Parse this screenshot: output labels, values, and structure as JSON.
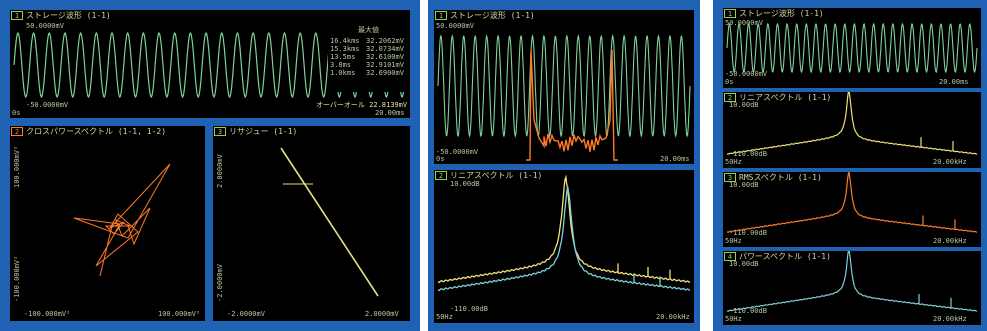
{
  "colors": {
    "bezel": "#1f62b3",
    "wave": "#7ed29a",
    "orange": "#ff7a2a",
    "yellow": "#f0e27a",
    "cyan": "#7fd0d8",
    "text": "#cfd8a0"
  },
  "left": {
    "top": {
      "tag": "1",
      "title": "ストレージ波形 (1-1)",
      "y_top": "50.0000mV",
      "y_bottom": "-50.0000mV",
      "x_left": "0s",
      "x_right": "20.00ms",
      "peak_title": "最大値",
      "peak_col1": [
        "16.4kms",
        "15.3kms",
        "13.5ms",
        "3.8ms",
        "1.0kms"
      ],
      "peak_col2": [
        "32.2062mV",
        "32.0734mV",
        "32.6100mV",
        "32.9101mV",
        "32.6900mV"
      ],
      "overall": "オーバーオール 22.8139mV"
    },
    "bottom_left": {
      "tag": "2",
      "title": "クロスパワースペクトル (1-1, 1-2)",
      "y_top": "100.000mV²",
      "y_bottom": "-100.000mV²",
      "x_left": "-100.000mV²",
      "x_right": "100.000mV²"
    },
    "bottom_right": {
      "tag": "3",
      "title": "リサジュー (1-1)",
      "y_top": "2.0000mV",
      "y_bottom": "-2.0000mV",
      "x_left": "-2.0000mV",
      "x_right": "2.0000mV"
    }
  },
  "middle": {
    "top": {
      "tag": "1",
      "title": "ストレージ波形 (1-1)",
      "y_top": "50.0000mV",
      "y_bottom": "-50.0000mV",
      "x_left": "0s",
      "x_right": "20.00ms"
    },
    "bottom": {
      "tag": "2",
      "title": "リニアスペクトル (1-1)",
      "y_top": "10.00dB",
      "y_bottom": "-110.00dB",
      "x_left": "50Hz",
      "x_right": "20.00kHz"
    }
  },
  "right": {
    "p1": {
      "tag": "1",
      "title": "ストレージ波形 (1-1)",
      "y_top": "50.0000mV",
      "y_bottom": "-50.0000mV",
      "x_left": "0s",
      "x_right": "20.00ms"
    },
    "p2": {
      "tag": "2",
      "title": "リニアスペクトル (1-1)",
      "y_top": "10.00dB",
      "y_bottom": "-110.00dB",
      "x_left": "50Hz",
      "x_right": "20.00kHz"
    },
    "p3": {
      "tag": "3",
      "title": "RMSスペクトル (1-1)",
      "y_top": "10.00dB",
      "y_bottom": "-110.00dB",
      "x_left": "50Hz",
      "x_right": "20.00kHz"
    },
    "p4": {
      "tag": "4",
      "title": "パワースペクトル (1-1)",
      "y_top": "10.00dB",
      "y_bottom": "-110.00dB",
      "x_left": "50Hz",
      "x_right": "20.00kHz"
    }
  }
}
